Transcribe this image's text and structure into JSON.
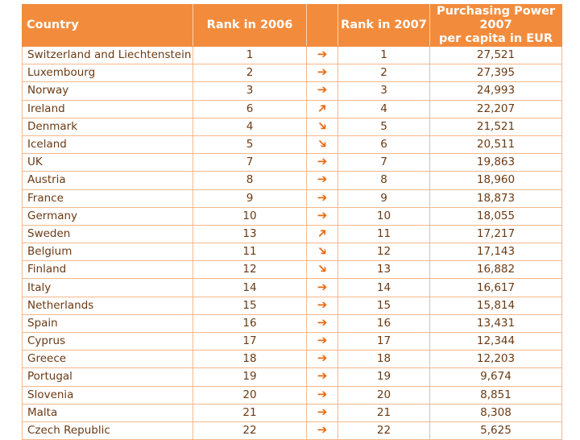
{
  "chart_data": {
    "type": "table",
    "columns": [
      "Country",
      "Rank in 2006",
      "",
      "Rank in 2007",
      "Purchasing Power 2007 per capita in EUR"
    ],
    "header": {
      "country": "Country",
      "rank2006": "Rank in 2006",
      "rank2007": "Rank in 2007",
      "pp_line1": "Purchasing Power 2007",
      "pp_line2": "per capita in EUR"
    },
    "rows": [
      {
        "country": "Switzerland and Liechtenstein",
        "rank2006": "1",
        "trend": "same",
        "rank2007": "1",
        "pp": "27,521"
      },
      {
        "country": "Luxembourg",
        "rank2006": "2",
        "trend": "same",
        "rank2007": "2",
        "pp": "27,395"
      },
      {
        "country": "Norway",
        "rank2006": "3",
        "trend": "same",
        "rank2007": "3",
        "pp": "24,993"
      },
      {
        "country": "Ireland",
        "rank2006": "6",
        "trend": "up",
        "rank2007": "4",
        "pp": "22,207"
      },
      {
        "country": "Denmark",
        "rank2006": "4",
        "trend": "down",
        "rank2007": "5",
        "pp": "21,521"
      },
      {
        "country": "Iceland",
        "rank2006": "5",
        "trend": "down",
        "rank2007": "6",
        "pp": "20,511"
      },
      {
        "country": "UK",
        "rank2006": "7",
        "trend": "same",
        "rank2007": "7",
        "pp": "19,863"
      },
      {
        "country": "Austria",
        "rank2006": "8",
        "trend": "same",
        "rank2007": "8",
        "pp": "18,960"
      },
      {
        "country": "France",
        "rank2006": "9",
        "trend": "same",
        "rank2007": "9",
        "pp": "18,873"
      },
      {
        "country": "Germany",
        "rank2006": "10",
        "trend": "same",
        "rank2007": "10",
        "pp": "18,055"
      },
      {
        "country": "Sweden",
        "rank2006": "13",
        "trend": "up",
        "rank2007": "11",
        "pp": "17,217"
      },
      {
        "country": "Belgium",
        "rank2006": "11",
        "trend": "down",
        "rank2007": "12",
        "pp": "17,143"
      },
      {
        "country": "Finland",
        "rank2006": "12",
        "trend": "down",
        "rank2007": "13",
        "pp": "16,882"
      },
      {
        "country": "Italy",
        "rank2006": "14",
        "trend": "same",
        "rank2007": "14",
        "pp": "16,617"
      },
      {
        "country": "Netherlands",
        "rank2006": "15",
        "trend": "same",
        "rank2007": "15",
        "pp": "15,814"
      },
      {
        "country": "Spain",
        "rank2006": "16",
        "trend": "same",
        "rank2007": "16",
        "pp": "13,431"
      },
      {
        "country": "Cyprus",
        "rank2006": "17",
        "trend": "same",
        "rank2007": "17",
        "pp": "12,344"
      },
      {
        "country": "Greece",
        "rank2006": "18",
        "trend": "same",
        "rank2007": "18",
        "pp": "12,203"
      },
      {
        "country": "Portugal",
        "rank2006": "19",
        "trend": "same",
        "rank2007": "19",
        "pp": "9,674"
      },
      {
        "country": "Slovenia",
        "rank2006": "20",
        "trend": "same",
        "rank2007": "20",
        "pp": "8,851"
      },
      {
        "country": "Malta",
        "rank2006": "21",
        "trend": "same",
        "rank2007": "21",
        "pp": "8,308"
      },
      {
        "country": "Czech Republic",
        "rank2006": "22",
        "trend": "same",
        "rank2007": "22",
        "pp": "5,625"
      }
    ]
  },
  "icons": {
    "same": "arrow-right-icon",
    "up": "arrow-up-right-icon",
    "down": "arrow-down-right-icon"
  },
  "colors": {
    "header_bg": "#f28c3c",
    "border": "#f5b78a",
    "text": "#6b3a14",
    "arrow": "#e86a12"
  }
}
